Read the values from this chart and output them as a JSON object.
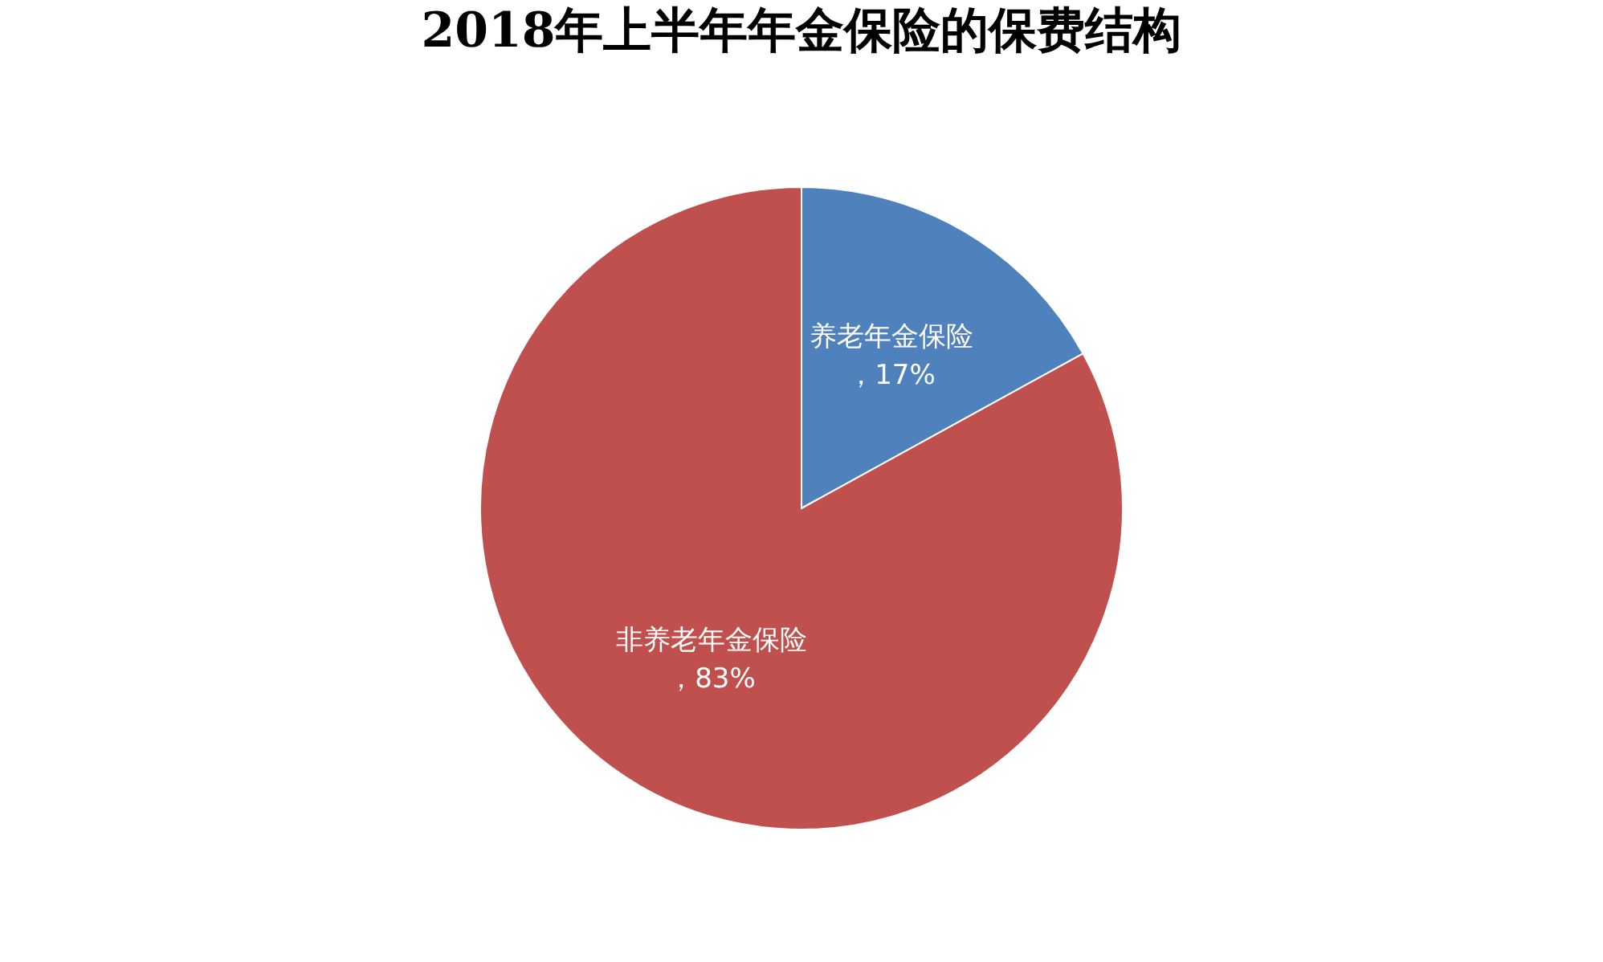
{
  "chart_data": {
    "type": "pie",
    "title": "2018年上半年年金保险的保费结构",
    "categories": [
      "养老年金保险",
      "非养老年金保险"
    ],
    "values": [
      17,
      83
    ],
    "colors": [
      "#4f81bd",
      "#c0504d"
    ],
    "value_labels": [
      "，17%",
      "，83%"
    ],
    "legend": false
  }
}
